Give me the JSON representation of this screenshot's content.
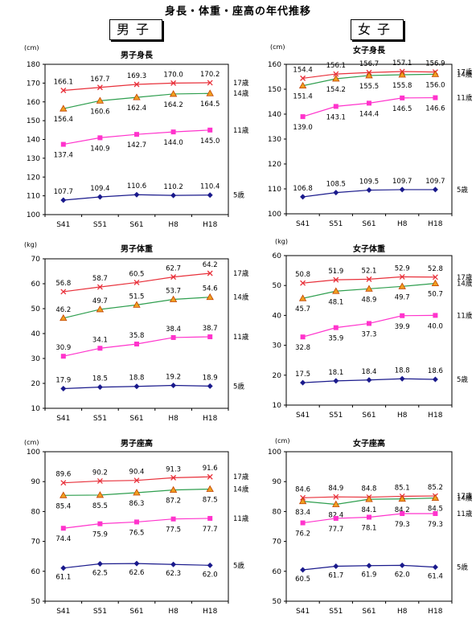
{
  "page": {
    "title": "身長・体重・座高の年代推移",
    "male_label": "男子",
    "female_label": "女子"
  },
  "colors": {
    "age17": "#e8303a",
    "age14": "#2e9e4e",
    "age14_marker": "#f0a020",
    "age11": "#ff33cc",
    "age5": "#1a1a8c"
  },
  "chart_data": [
    {
      "type": "line",
      "title": "男子身長",
      "unit": "(cm)",
      "categories": [
        "S41",
        "S51",
        "S61",
        "H8",
        "H18"
      ],
      "ylim": [
        100,
        180
      ],
      "ystep": 10,
      "series": [
        {
          "name": "17歳",
          "values": [
            166.1,
            167.7,
            169.3,
            170.0,
            170.2
          ]
        },
        {
          "name": "14歳",
          "values": [
            156.4,
            160.6,
            162.4,
            164.2,
            164.5
          ]
        },
        {
          "name": "11歳",
          "values": [
            137.4,
            140.9,
            142.7,
            144.0,
            145.0
          ]
        },
        {
          "name": "5歳",
          "values": [
            107.7,
            109.4,
            110.6,
            110.2,
            110.4
          ]
        }
      ]
    },
    {
      "type": "line",
      "title": "女子身長",
      "unit": "(cm)",
      "categories": [
        "S41",
        "S51",
        "S61",
        "H8",
        "H18"
      ],
      "ylim": [
        100,
        160
      ],
      "ystep": 10,
      "series": [
        {
          "name": "17歳",
          "values": [
            154.4,
            156.1,
            156.7,
            157.1,
            156.9
          ]
        },
        {
          "name": "14歳",
          "values": [
            151.4,
            154.2,
            155.5,
            155.8,
            156.0
          ]
        },
        {
          "name": "11歳",
          "values": [
            139.0,
            143.1,
            144.4,
            146.5,
            146.6
          ]
        },
        {
          "name": "5歳",
          "values": [
            106.8,
            108.5,
            109.5,
            109.7,
            109.7
          ]
        }
      ]
    },
    {
      "type": "line",
      "title": "男子体重",
      "unit": "(kg)",
      "categories": [
        "S41",
        "S51",
        "S61",
        "H8",
        "H18"
      ],
      "ylim": [
        10,
        70
      ],
      "ystep": 10,
      "series": [
        {
          "name": "17歳",
          "values": [
            56.8,
            58.7,
            60.5,
            62.7,
            64.2
          ]
        },
        {
          "name": "14歳",
          "values": [
            46.2,
            49.7,
            51.5,
            53.7,
            54.6
          ]
        },
        {
          "name": "11歳",
          "values": [
            30.9,
            34.1,
            35.8,
            38.4,
            38.7
          ]
        },
        {
          "name": "5歳",
          "values": [
            17.9,
            18.5,
            18.8,
            19.2,
            18.9
          ]
        }
      ]
    },
    {
      "type": "line",
      "title": "女子体重",
      "unit": "(kg)",
      "categories": [
        "S41",
        "S51",
        "S61",
        "H8",
        "H18"
      ],
      "ylim": [
        10,
        60
      ],
      "ystep": 10,
      "series": [
        {
          "name": "17歳",
          "values": [
            50.8,
            51.9,
            52.1,
            52.9,
            52.8
          ]
        },
        {
          "name": "14歳",
          "values": [
            45.7,
            48.1,
            48.9,
            49.7,
            50.7
          ]
        },
        {
          "name": "11歳",
          "values": [
            32.8,
            35.9,
            37.3,
            39.9,
            40.0
          ]
        },
        {
          "name": "5歳",
          "values": [
            17.5,
            18.1,
            18.4,
            18.8,
            18.6
          ]
        }
      ]
    },
    {
      "type": "line",
      "title": "男子座高",
      "unit": "(cm)",
      "categories": [
        "S41",
        "S51",
        "S61",
        "H8",
        "H18"
      ],
      "ylim": [
        50,
        100
      ],
      "ystep": 10,
      "series": [
        {
          "name": "17歳",
          "values": [
            89.6,
            90.2,
            90.4,
            91.3,
            91.6
          ]
        },
        {
          "name": "14歳",
          "values": [
            85.4,
            85.5,
            86.3,
            87.2,
            87.5
          ]
        },
        {
          "name": "11歳",
          "values": [
            74.4,
            75.9,
            76.5,
            77.5,
            77.7
          ]
        },
        {
          "name": "5歳",
          "values": [
            61.1,
            62.5,
            62.6,
            62.3,
            62.0
          ]
        }
      ]
    },
    {
      "type": "line",
      "title": "女子座高",
      "unit": "(cm)",
      "categories": [
        "S41",
        "S51",
        "S61",
        "H8",
        "H18"
      ],
      "ylim": [
        50,
        100
      ],
      "ystep": 10,
      "series": [
        {
          "name": "17歳",
          "values": [
            84.6,
            84.9,
            84.8,
            85.1,
            85.2
          ]
        },
        {
          "name": "14歳",
          "values": [
            83.4,
            82.4,
            84.1,
            84.2,
            84.5
          ]
        },
        {
          "name": "11歳",
          "values": [
            76.2,
            77.7,
            78.1,
            79.3,
            79.3
          ]
        },
        {
          "name": "5歳",
          "values": [
            60.5,
            61.7,
            61.9,
            62.0,
            61.4
          ]
        }
      ]
    }
  ]
}
